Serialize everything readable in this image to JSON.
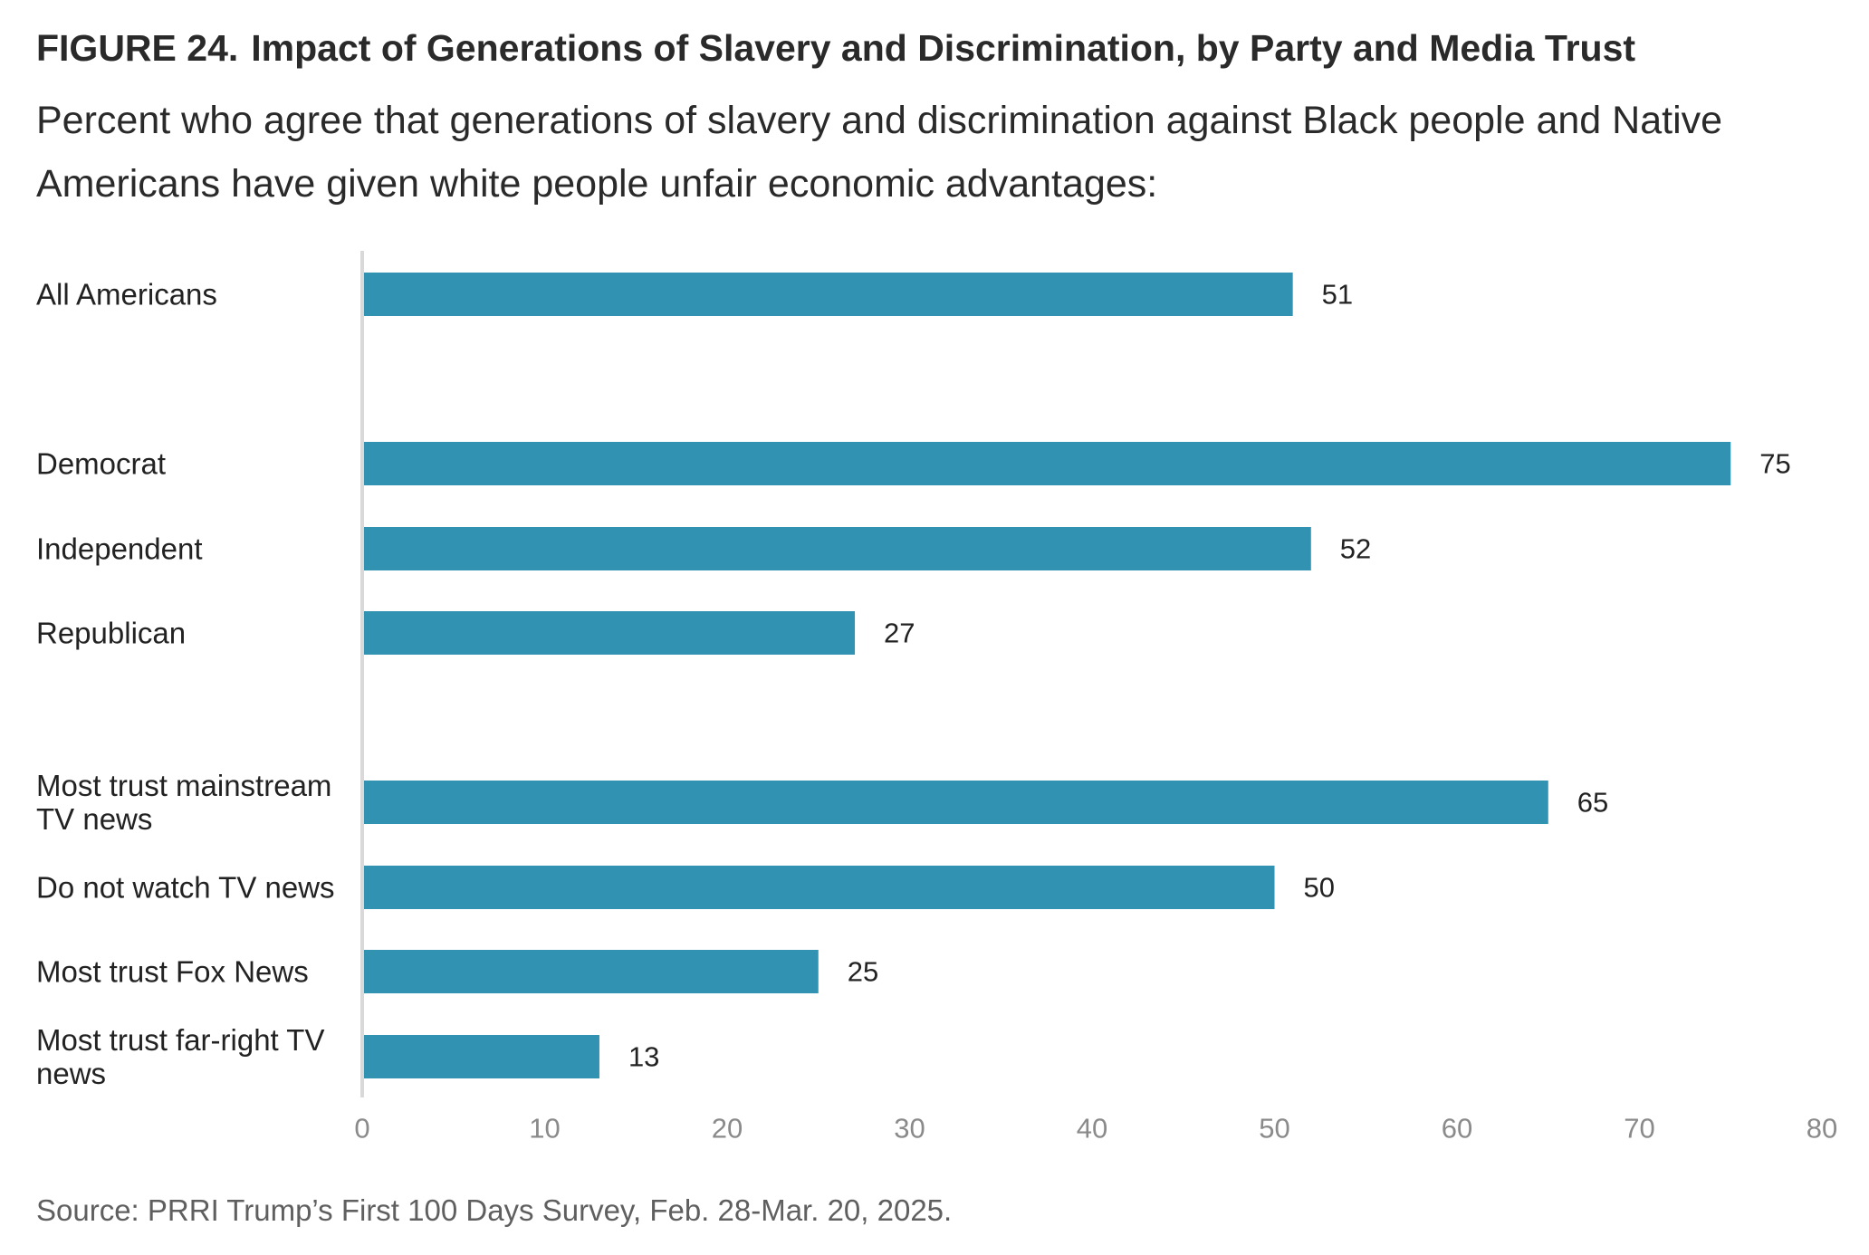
{
  "figure": {
    "number": "FIGURE 24.",
    "title": "Impact of Generations of Slavery and Discrimination, by Party and Media Trust",
    "subtitle": "Percent who agree that generations of slavery and discrimination against Black people and Native Americans have given white people unfair economic advantages:",
    "source": "Source: PRRI Trump’s First 100 Days Survey, Feb. 28-Mar. 20, 2025."
  },
  "chart_data": {
    "type": "bar",
    "orientation": "horizontal",
    "categories": [
      "All Americans",
      "Democrat",
      "Independent",
      "Republican",
      "Most trust mainstream TV news",
      "Do not watch TV news",
      "Most trust Fox News",
      "Most trust far-right TV news"
    ],
    "values": [
      51,
      75,
      52,
      27,
      65,
      50,
      25,
      13
    ],
    "groups": [
      [
        "All Americans"
      ],
      [
        "Democrat",
        "Independent",
        "Republican"
      ],
      [
        "Most trust mainstream TV news",
        "Do not watch TV news",
        "Most trust Fox News",
        "Most trust far-right TV news"
      ]
    ],
    "xlim": [
      0,
      80
    ],
    "xticks": [
      0,
      10,
      20,
      30,
      40,
      50,
      60,
      70,
      80
    ],
    "bar_color": "#3192b2",
    "axis_color": "#d9d9d9",
    "grid": false,
    "legend": "none"
  }
}
